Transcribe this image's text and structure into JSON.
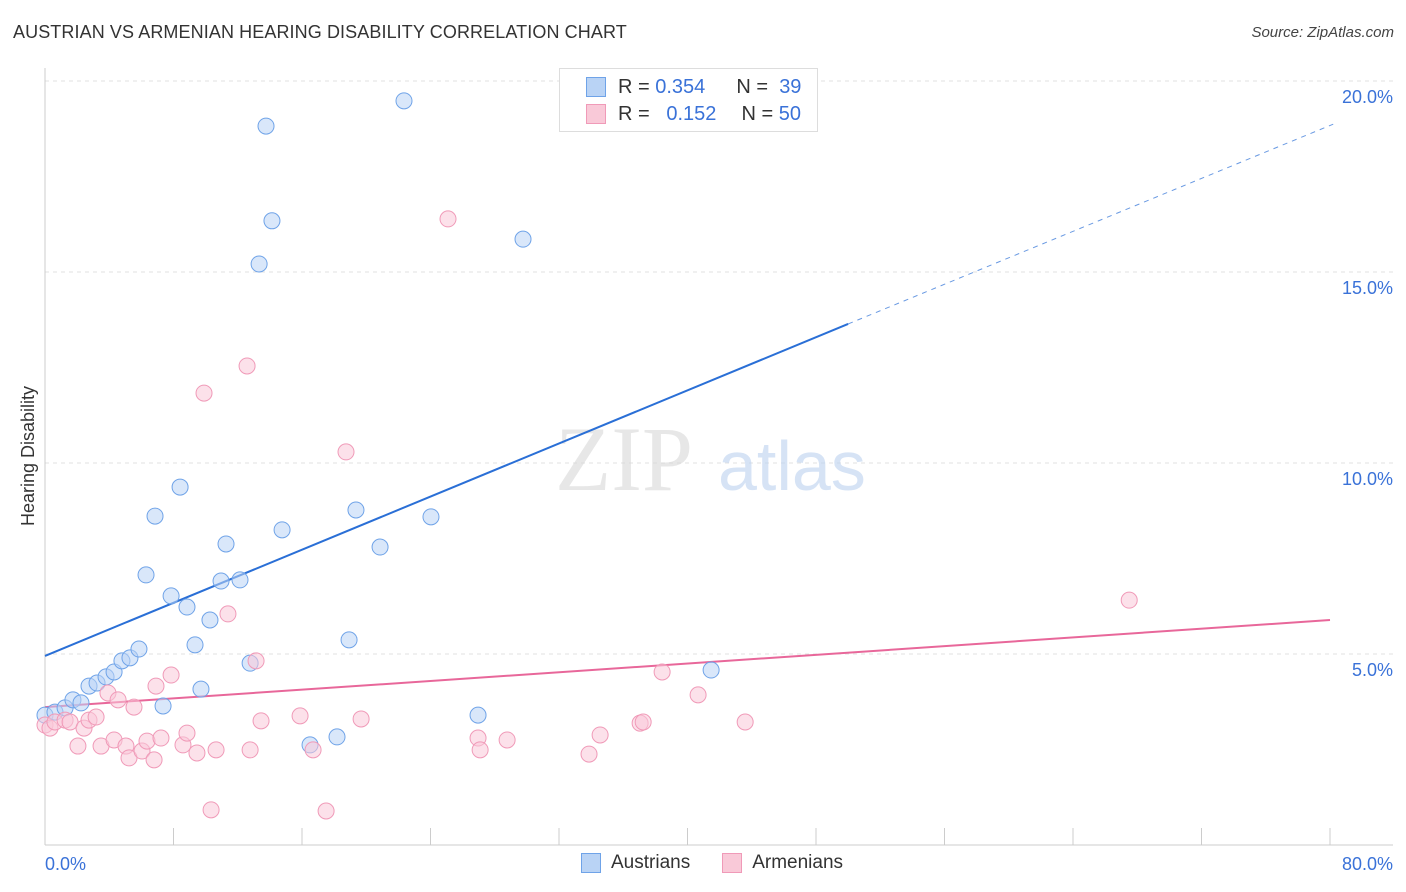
{
  "chart_data": {
    "type": "scatter",
    "title": "AUSTRIAN VS ARMENIAN HEARING DISABILITY CORRELATION CHART",
    "source": "Source: ZipAtlas.com",
    "xlabel": "",
    "ylabel": "Hearing Disability",
    "xlim": [
      0,
      80
    ],
    "ylim": [
      0,
      20
    ],
    "x_tick_labels": [
      "0.0%",
      "80.0%"
    ],
    "y_ticks": [
      5,
      10,
      15,
      20
    ],
    "y_tick_labels": [
      "5.0%",
      "10.0%",
      "15.0%",
      "20.0%"
    ],
    "grid": true,
    "watermark": "ZIPatlas",
    "legend": {
      "rows": [
        {
          "r_label": "R =",
          "r": "0.354",
          "n_label": "N =",
          "n": "39"
        },
        {
          "r_label": "R =",
          "r": "0.152",
          "n_label": "N =",
          "n": "50"
        }
      ]
    },
    "series": [
      {
        "name": "Austrians",
        "color": "#6fa3e8",
        "fill": "#b9d3f5",
        "line_color": "#2a6fd6",
        "trend": {
          "x0": 0,
          "y0": 4.95,
          "x_solid_end": 50,
          "y_solid_end": 13.64,
          "x1": 80.2,
          "y1": 18.87
        },
        "points": [
          [
            0,
            3.4
          ],
          [
            0.62,
            3.48
          ],
          [
            1.25,
            3.59
          ],
          [
            1.74,
            3.8
          ],
          [
            2.24,
            3.72
          ],
          [
            2.74,
            4.16
          ],
          [
            3.24,
            4.24
          ],
          [
            3.8,
            4.4
          ],
          [
            4.3,
            4.53
          ],
          [
            4.79,
            4.82
          ],
          [
            5.29,
            4.9
          ],
          [
            5.85,
            5.13
          ],
          [
            6.29,
            7.07
          ],
          [
            6.85,
            8.61
          ],
          [
            7.35,
            3.64
          ],
          [
            7.85,
            6.52
          ],
          [
            8.41,
            9.37
          ],
          [
            8.84,
            6.23
          ],
          [
            9.34,
            5.24
          ],
          [
            9.71,
            4.08
          ],
          [
            10.27,
            5.89
          ],
          [
            10.96,
            6.91
          ],
          [
            11.27,
            7.88
          ],
          [
            12.14,
            6.94
          ],
          [
            12.77,
            4.76
          ],
          [
            13.33,
            15.21
          ],
          [
            13.76,
            18.82
          ],
          [
            14.13,
            16.34
          ],
          [
            14.76,
            8.25
          ],
          [
            16.5,
            2.62
          ],
          [
            18.18,
            2.83
          ],
          [
            18.93,
            5.37
          ],
          [
            19.36,
            8.77
          ],
          [
            20.86,
            7.8
          ],
          [
            22.35,
            19.48
          ],
          [
            24.03,
            8.59
          ],
          [
            26.96,
            3.4
          ],
          [
            29.76,
            15.86
          ],
          [
            41.47,
            4.58
          ]
        ]
      },
      {
        "name": "Armenians",
        "color": "#f09ab8",
        "fill": "#f9c9d8",
        "line_color": "#e8679a",
        "trend": {
          "x0": 0,
          "y0": 3.61,
          "x1": 80,
          "y1": 5.89
        },
        "points": [
          [
            0,
            3.14
          ],
          [
            0.31,
            3.06
          ],
          [
            0.62,
            3.22
          ],
          [
            1.25,
            3.27
          ],
          [
            1.56,
            3.22
          ],
          [
            2.05,
            2.59
          ],
          [
            2.43,
            3.06
          ],
          [
            2.74,
            3.27
          ],
          [
            3.18,
            3.35
          ],
          [
            3.49,
            2.59
          ],
          [
            3.92,
            3.98
          ],
          [
            4.3,
            2.75
          ],
          [
            4.55,
            3.8
          ],
          [
            5.04,
            2.59
          ],
          [
            5.23,
            2.28
          ],
          [
            5.54,
            3.61
          ],
          [
            6.04,
            2.46
          ],
          [
            6.35,
            2.72
          ],
          [
            6.79,
            2.23
          ],
          [
            6.91,
            4.16
          ],
          [
            7.22,
            2.8
          ],
          [
            7.85,
            4.45
          ],
          [
            8.59,
            2.62
          ],
          [
            8.84,
            2.93
          ],
          [
            9.46,
            2.41
          ],
          [
            9.9,
            11.83
          ],
          [
            10.34,
            0.92
          ],
          [
            10.65,
            2.49
          ],
          [
            11.39,
            6.05
          ],
          [
            12.58,
            12.54
          ],
          [
            12.77,
            2.49
          ],
          [
            13.14,
            4.82
          ],
          [
            13.45,
            3.25
          ],
          [
            15.88,
            3.38
          ],
          [
            16.69,
            2.49
          ],
          [
            17.5,
            0.89
          ],
          [
            18.74,
            10.29
          ],
          [
            19.68,
            3.3
          ],
          [
            25.09,
            16.39
          ],
          [
            26.96,
            2.8
          ],
          [
            27.09,
            2.49
          ],
          [
            28.77,
            2.75
          ],
          [
            33.87,
            2.38
          ],
          [
            34.56,
            2.88
          ],
          [
            37.05,
            3.19
          ],
          [
            37.24,
            3.22
          ],
          [
            38.42,
            4.53
          ],
          [
            40.66,
            3.93
          ],
          [
            43.59,
            3.22
          ],
          [
            67.5,
            6.41
          ]
        ]
      }
    ]
  }
}
